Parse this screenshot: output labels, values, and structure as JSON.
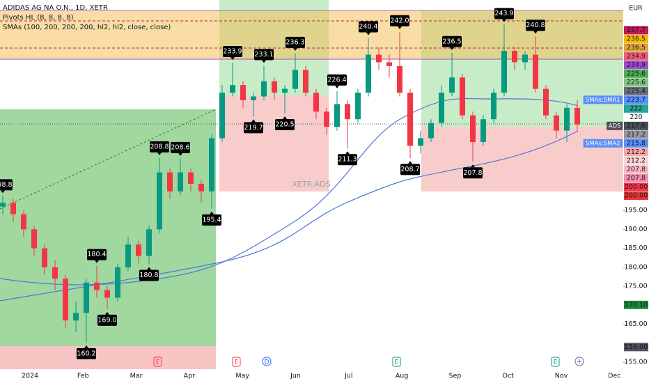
{
  "chart_data": {
    "type": "candlestick",
    "title": "ADIDAS AG NA O.N., 1D, XETR",
    "indicators": [
      "Pivots HL (8, 8, 8, 8)",
      "SMAs (100, 200, 200, 200, hl2, hl2, close, close)"
    ],
    "watermark": "XETR:ADS",
    "currency": "EUR",
    "up_color": "#089981",
    "down_color": "#f23645",
    "categories": [
      "2024",
      "Feb",
      "Mar",
      "Apr",
      "May",
      "Jun",
      "Jul",
      "Aug",
      "Sep",
      "Oct",
      "Nov",
      "Dec"
    ],
    "ylim": [
      153.2,
      250.4
    ],
    "yticks": [
      {
        "value": 155,
        "label": "155.00"
      },
      {
        "value": 165,
        "label": "165.00"
      },
      {
        "value": 175,
        "label": "175.00"
      },
      {
        "value": 180,
        "label": "180.00"
      },
      {
        "value": 185,
        "label": "185.00"
      },
      {
        "value": 190,
        "label": "190.00"
      },
      {
        "value": 195,
        "label": "195.00"
      }
    ],
    "candles": [
      {
        "o": 196,
        "h": 198.8,
        "l": 194,
        "c": 197,
        "pivot": "high",
        "label": "198.8"
      },
      {
        "o": 197,
        "h": 198,
        "l": 192,
        "c": 194
      },
      {
        "o": 194,
        "h": 195,
        "l": 188,
        "c": 190
      },
      {
        "o": 190,
        "h": 191,
        "l": 183,
        "c": 185
      },
      {
        "o": 185,
        "h": 186,
        "l": 178,
        "c": 180
      },
      {
        "o": 180,
        "h": 182,
        "l": 174,
        "c": 177
      },
      {
        "o": 177,
        "h": 178,
        "l": 164,
        "c": 166
      },
      {
        "o": 166,
        "h": 171,
        "l": 163,
        "c": 168
      },
      {
        "o": 168,
        "h": 177,
        "l": 160.2,
        "c": 176,
        "pivot": "low",
        "label": "160.2"
      },
      {
        "o": 176,
        "h": 180.4,
        "l": 172,
        "c": 174,
        "pivot": "high",
        "label": "180.4"
      },
      {
        "o": 174,
        "h": 175,
        "l": 169,
        "c": 172,
        "pivot": "low",
        "label": "169.0"
      },
      {
        "o": 172,
        "h": 181,
        "l": 171,
        "c": 180
      },
      {
        "o": 180,
        "h": 188,
        "l": 179,
        "c": 186
      },
      {
        "o": 186,
        "h": 187,
        "l": 181,
        "c": 183
      },
      {
        "o": 183,
        "h": 191,
        "l": 180.8,
        "c": 190,
        "pivot": "low",
        "label": "180.8"
      },
      {
        "o": 190,
        "h": 208.8,
        "l": 189,
        "c": 205,
        "pivot": "high",
        "label": "208.8"
      },
      {
        "o": 205,
        "h": 206,
        "l": 198,
        "c": 200
      },
      {
        "o": 200,
        "h": 208.6,
        "l": 199,
        "c": 205,
        "pivot": "high",
        "label": "208.6"
      },
      {
        "o": 205,
        "h": 206,
        "l": 200,
        "c": 202
      },
      {
        "o": 202,
        "h": 203,
        "l": 197,
        "c": 200
      },
      {
        "o": 200,
        "h": 215,
        "l": 195.4,
        "c": 214,
        "pivot": "low",
        "label": "195.4"
      },
      {
        "o": 214,
        "h": 228,
        "l": 213,
        "c": 226
      },
      {
        "o": 226,
        "h": 233.9,
        "l": 225,
        "c": 228,
        "pivot": "high",
        "label": "233.9"
      },
      {
        "o": 228,
        "h": 229,
        "l": 222,
        "c": 224
      },
      {
        "o": 224,
        "h": 226,
        "l": 219.7,
        "c": 225,
        "pivot": "low",
        "label": "219.7"
      },
      {
        "o": 225,
        "h": 233.1,
        "l": 224,
        "c": 229,
        "pivot": "high",
        "label": "233.1"
      },
      {
        "o": 229,
        "h": 230,
        "l": 224,
        "c": 226
      },
      {
        "o": 226,
        "h": 228,
        "l": 220.5,
        "c": 227,
        "pivot": "low",
        "label": "220.5"
      },
      {
        "o": 227,
        "h": 236.3,
        "l": 226,
        "c": 232,
        "pivot": "high",
        "label": "236.3"
      },
      {
        "o": 232,
        "h": 233,
        "l": 225,
        "c": 226
      },
      {
        "o": 226,
        "h": 227,
        "l": 219,
        "c": 221
      },
      {
        "o": 221,
        "h": 222,
        "l": 215,
        "c": 217
      },
      {
        "o": 217,
        "h": 226.4,
        "l": 216,
        "c": 223,
        "pivot": "high",
        "label": "226.4"
      },
      {
        "o": 223,
        "h": 224,
        "l": 211.3,
        "c": 219,
        "pivot": "low",
        "label": "211.3"
      },
      {
        "o": 219,
        "h": 227,
        "l": 218,
        "c": 226
      },
      {
        "o": 226,
        "h": 240.4,
        "l": 225,
        "c": 236,
        "pivot": "high",
        "label": "240.4"
      },
      {
        "o": 236,
        "h": 238,
        "l": 232,
        "c": 234
      },
      {
        "o": 234,
        "h": 236,
        "l": 230,
        "c": 233
      },
      {
        "o": 233,
        "h": 242,
        "l": 225,
        "c": 226,
        "pivot": "high",
        "label": "242.0"
      },
      {
        "o": 226,
        "h": 227,
        "l": 208.7,
        "c": 212,
        "pivot": "low",
        "label": "208.7"
      },
      {
        "o": 212,
        "h": 216,
        "l": 210,
        "c": 214
      },
      {
        "o": 214,
        "h": 219,
        "l": 213,
        "c": 218
      },
      {
        "o": 218,
        "h": 228,
        "l": 217,
        "c": 226
      },
      {
        "o": 226,
        "h": 236.5,
        "l": 225,
        "c": 230,
        "pivot": "high",
        "label": "236.5"
      },
      {
        "o": 230,
        "h": 231,
        "l": 219,
        "c": 220
      },
      {
        "o": 220,
        "h": 221,
        "l": 207.8,
        "c": 213,
        "pivot": "low",
        "label": "207.8"
      },
      {
        "o": 213,
        "h": 220,
        "l": 212,
        "c": 219
      },
      {
        "o": 219,
        "h": 227,
        "l": 218,
        "c": 226
      },
      {
        "o": 226,
        "h": 243.9,
        "l": 225,
        "c": 237,
        "pivot": "high",
        "label": "243.9"
      },
      {
        "o": 237,
        "h": 238,
        "l": 232,
        "c": 234
      },
      {
        "o": 234,
        "h": 237,
        "l": 232,
        "c": 236
      },
      {
        "o": 236,
        "h": 240.8,
        "l": 226,
        "c": 227,
        "pivot": "high",
        "label": "240.8"
      },
      {
        "o": 227,
        "h": 228,
        "l": 219,
        "c": 220
      },
      {
        "o": 220,
        "h": 221,
        "l": 214,
        "c": 216
      },
      {
        "o": 216,
        "h": 223,
        "l": 213,
        "c": 222
      },
      {
        "o": 222,
        "h": 224,
        "l": 216,
        "c": 217.6
      }
    ],
    "price_labels": [
      {
        "value": 237.7,
        "color": "#c2185b"
      },
      {
        "value": 236.5,
        "color": "#f5b700"
      },
      {
        "value": 236.5,
        "color": "#e0a33c"
      },
      {
        "value": 234.9,
        "color": "#ef5f7a"
      },
      {
        "value": 234.9,
        "color": "#9c4dcc"
      },
      {
        "value": 225.6,
        "color": "#4caf50"
      },
      {
        "value": 225.6,
        "color": "#81c784"
      },
      {
        "value": 225.4,
        "color": "#6b6f7a"
      },
      {
        "value": 223.7,
        "color": "#5b8ff9",
        "tag": "SMAs:SMA1"
      },
      {
        "value": 222.0,
        "color": "#26a69a"
      },
      {
        "value": 220.0,
        "color": "#ffffff"
      },
      {
        "value": 217.6,
        "color": "#4a4e59",
        "tag": "ADS"
      },
      {
        "value": 217.2,
        "color": "#9598a1"
      },
      {
        "value": 215.8,
        "color": "#5b8ff9",
        "tag": "SMAs:SMA2"
      },
      {
        "value": 212.2,
        "color": "#f7a9a9"
      },
      {
        "value": 212.2,
        "color": "#fbd4d4"
      },
      {
        "value": 207.8,
        "color": "#f7b8c4"
      },
      {
        "value": 207.8,
        "color": "#f48fb1"
      },
      {
        "value": 200,
        "label": "200.00",
        "color": "#f23645"
      },
      {
        "value": 200,
        "label": "200.00",
        "color": "#e53935"
      },
      {
        "value": 170.1,
        "label": "170.10",
        "color": "#1b8a3a"
      },
      {
        "value": 159,
        "label": "159.00",
        "color": "#50535e"
      }
    ],
    "events": [
      "E",
      "E",
      "D",
      "E",
      "E"
    ]
  }
}
